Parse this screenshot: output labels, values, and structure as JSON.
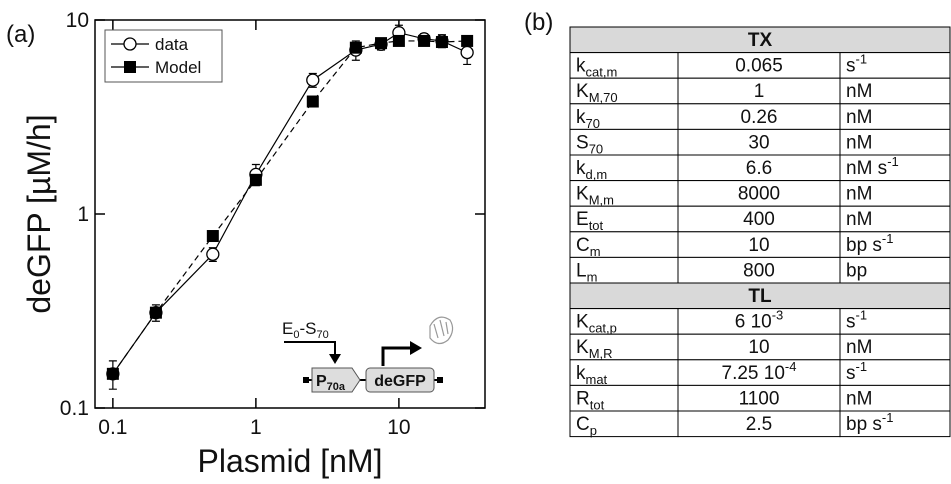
{
  "panel_labels": [
    "(a)",
    "(b)"
  ],
  "chart_data": {
    "type": "line",
    "xlabel": "Plasmid [nM]",
    "ylabel": "deGFP [µM/h]",
    "log_x": true,
    "log_y": true,
    "xlim": [
      0.075,
      40
    ],
    "ylim": [
      0.1,
      10
    ],
    "xticks": [
      0.1,
      1,
      10
    ],
    "yticks": [
      0.1,
      1,
      10
    ],
    "legend": "upper left",
    "x": [
      0.1,
      0.2,
      0.5,
      1,
      2.5,
      5,
      7.5,
      10,
      15,
      20,
      30
    ],
    "series": [
      {
        "name": "data",
        "color": "#000000",
        "marker": "circle-open",
        "line_style": "solid",
        "values": [
          0.15,
          0.31,
          0.62,
          1.6,
          4.9,
          7.0,
          7.5,
          8.6,
          8.0,
          7.8,
          6.8
        ],
        "errors": [
          0.025,
          0.03,
          0.05,
          0.2,
          0.4,
          0.8,
          0.5,
          0.8,
          0.5,
          0.6,
          0.9
        ]
      },
      {
        "name": "Model",
        "color": "#000000",
        "marker": "square",
        "line_style": "dashed",
        "values": [
          0.15,
          0.31,
          0.77,
          1.5,
          3.8,
          7.2,
          7.6,
          7.8,
          7.8,
          7.7,
          7.8
        ]
      }
    ],
    "inset": {
      "activator": [
        "E",
        "0",
        "-S",
        "70"
      ],
      "promoter": [
        "P",
        "70a"
      ],
      "gene": "deGFP"
    }
  },
  "table": {
    "sections": [
      {
        "title": "TX",
        "rows": [
          {
            "symbol": [
              "k",
              "cat,m"
            ],
            "value": [
              "0.065"
            ],
            "unit": [
              "s",
              "-1"
            ]
          },
          {
            "symbol": [
              "K",
              "M,70"
            ],
            "value": [
              "1"
            ],
            "unit": [
              "nM"
            ]
          },
          {
            "symbol": [
              "k",
              "70"
            ],
            "value": [
              "0.26"
            ],
            "unit": [
              "nM"
            ]
          },
          {
            "symbol": [
              "S",
              "70"
            ],
            "value": [
              "30"
            ],
            "unit": [
              "nM"
            ]
          },
          {
            "symbol": [
              "k",
              "d,m"
            ],
            "value": [
              "6.6"
            ],
            "unit": [
              "nM s",
              "-1"
            ]
          },
          {
            "symbol": [
              "K",
              "M,m"
            ],
            "value": [
              "8000"
            ],
            "unit": [
              "nM"
            ]
          },
          {
            "symbol": [
              "E",
              "tot"
            ],
            "value": [
              "400"
            ],
            "unit": [
              "nM"
            ]
          },
          {
            "symbol": [
              "C",
              "m"
            ],
            "value": [
              "10"
            ],
            "unit": [
              "bp s",
              "-1"
            ]
          },
          {
            "symbol": [
              "L",
              "m"
            ],
            "value": [
              "800"
            ],
            "unit": [
              "bp"
            ]
          }
        ]
      },
      {
        "title": "TL",
        "rows": [
          {
            "symbol": [
              "K",
              "cat,p"
            ],
            "value": [
              "6 10",
              "-3"
            ],
            "unit": [
              "s",
              "-1"
            ]
          },
          {
            "symbol": [
              "K",
              "M,R"
            ],
            "value": [
              "10"
            ],
            "unit": [
              "nM"
            ]
          },
          {
            "symbol": [
              "k",
              "mat"
            ],
            "value": [
              "7.25 10",
              "-4"
            ],
            "unit": [
              "s",
              "-1"
            ]
          },
          {
            "symbol": [
              "R",
              "tot"
            ],
            "value": [
              "1100"
            ],
            "unit": [
              "nM"
            ]
          },
          {
            "symbol": [
              "C",
              "p"
            ],
            "value": [
              "2.5"
            ],
            "unit": [
              "bp s",
              "-1"
            ]
          }
        ]
      }
    ]
  }
}
